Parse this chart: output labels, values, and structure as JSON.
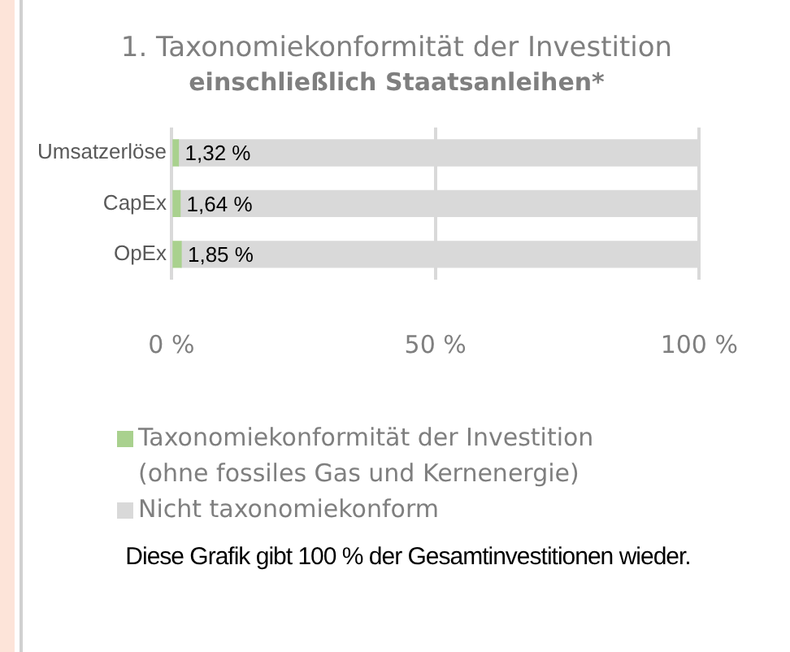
{
  "chart_data": {
    "type": "bar",
    "orientation": "horizontal",
    "stacked": true,
    "title": "1. Taxonomiekonformität der Investition",
    "subtitle": "einschließlich Staatsanleihen*",
    "categories": [
      "Umsatzerlöse",
      "CapEx",
      "OpEx"
    ],
    "series": [
      {
        "name": "Taxonomiekonformität der Investition (ohne fossiles Gas und Kernenergie)",
        "color": "#a9d18e",
        "values": [
          1.32,
          1.64,
          1.85
        ],
        "value_labels": [
          "1,32 %",
          "1,64 %",
          "1,85 %"
        ]
      },
      {
        "name": "Nicht taxonomiekonform",
        "color": "#d9d9d9",
        "values": [
          98.68,
          98.36,
          98.15
        ]
      }
    ],
    "xlim": [
      0,
      100
    ],
    "xticks": [
      {
        "value": 0,
        "label": "0 %"
      },
      {
        "value": 50,
        "label": "50 %"
      },
      {
        "value": 100,
        "label": "100 %"
      }
    ],
    "grid": "x",
    "legend": "bottom",
    "annotations": [
      "Diese Grafik gibt 100 % der Gesamtinvestitionen wieder."
    ]
  }
}
